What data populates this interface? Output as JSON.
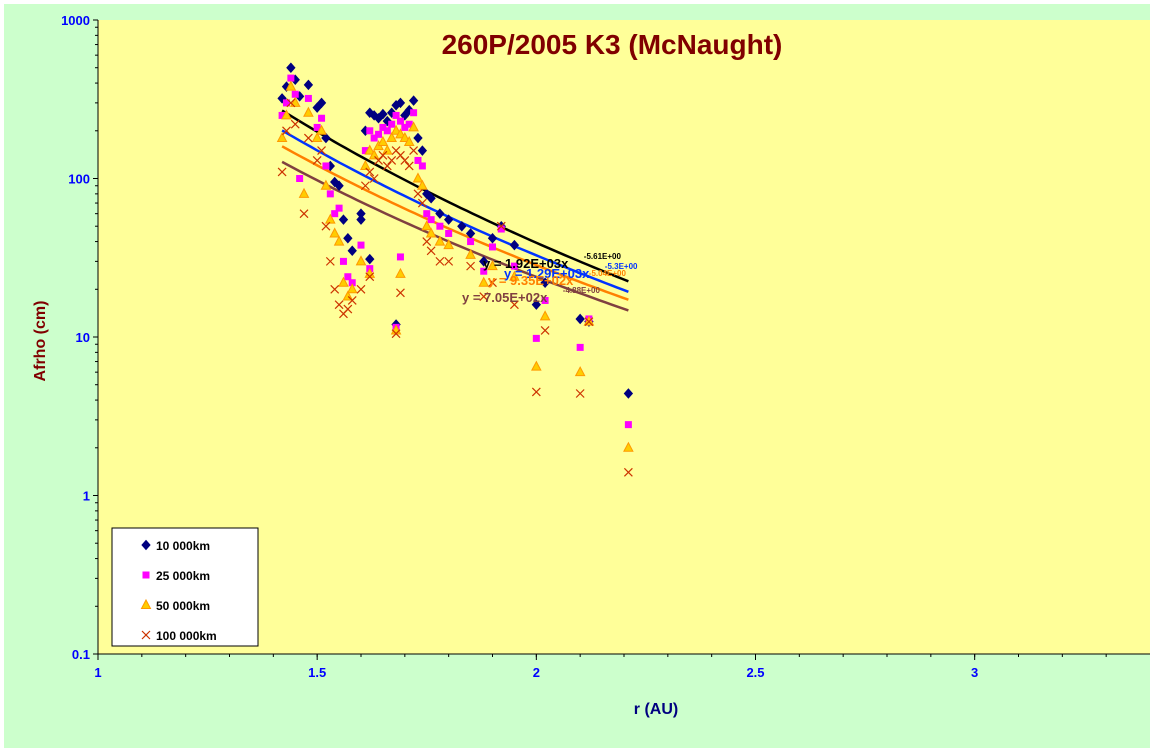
{
  "chart_data": {
    "type": "scatter",
    "title": "260P/2005 K3 (McNaught)",
    "xlabel": "r (AU)",
    "ylabel": "Afrho (cm)",
    "x_range": [
      1,
      3.4
    ],
    "y_range": [
      0.1,
      1000
    ],
    "y_scale": "log",
    "x_ticks": [
      "1",
      "1.5",
      "2",
      "2.5",
      "3"
    ],
    "y_ticks": [
      "0.1",
      "1",
      "10",
      "100",
      "1000"
    ],
    "legend_position": "bottom-left",
    "colors": {
      "background": "#ccffcc",
      "plot_area": "#ffff99",
      "s1": "#000080",
      "s2": "#ff00ff",
      "s3": "#ff9900",
      "s4": "#cc3300",
      "trend1": "#000000",
      "trend2": "#0033ff",
      "trend3": "#ff8000",
      "trend4": "#804040"
    },
    "series": [
      {
        "name": "10 000km",
        "marker": "diamond",
        "points": [
          [
            1.42,
            320
          ],
          [
            1.43,
            380
          ],
          [
            1.44,
            500
          ],
          [
            1.45,
            420
          ],
          [
            1.46,
            330
          ],
          [
            1.48,
            390
          ],
          [
            1.5,
            280
          ],
          [
            1.51,
            300
          ],
          [
            1.52,
            180
          ],
          [
            1.53,
            120
          ],
          [
            1.54,
            95
          ],
          [
            1.55,
            90
          ],
          [
            1.56,
            55
          ],
          [
            1.57,
            42
          ],
          [
            1.58,
            35
          ],
          [
            1.6,
            60
          ],
          [
            1.6,
            55
          ],
          [
            1.61,
            200
          ],
          [
            1.62,
            260
          ],
          [
            1.63,
            250
          ],
          [
            1.64,
            240
          ],
          [
            1.65,
            255
          ],
          [
            1.66,
            230
          ],
          [
            1.67,
            260
          ],
          [
            1.68,
            290
          ],
          [
            1.69,
            300
          ],
          [
            1.7,
            250
          ],
          [
            1.71,
            270
          ],
          [
            1.72,
            310
          ],
          [
            1.73,
            180
          ],
          [
            1.74,
            150
          ],
          [
            1.75,
            80
          ],
          [
            1.76,
            75
          ],
          [
            1.78,
            60
          ],
          [
            1.8,
            55
          ],
          [
            1.68,
            12
          ],
          [
            1.85,
            45
          ],
          [
            1.9,
            42
          ],
          [
            1.95,
            38
          ],
          [
            1.92,
            50
          ],
          [
            2,
            16
          ],
          [
            2.02,
            22
          ],
          [
            2.1,
            13
          ],
          [
            2.12,
            12.5
          ],
          [
            2.21,
            4.4
          ],
          [
            1.88,
            30
          ],
          [
            1.83,
            50
          ],
          [
            1.62,
            31
          ]
        ]
      },
      {
        "name": "25 000km",
        "marker": "square",
        "points": [
          [
            1.42,
            250
          ],
          [
            1.43,
            300
          ],
          [
            1.44,
            430
          ],
          [
            1.45,
            340
          ],
          [
            1.46,
            100
          ],
          [
            1.48,
            320
          ],
          [
            1.5,
            210
          ],
          [
            1.51,
            240
          ],
          [
            1.52,
            120
          ],
          [
            1.53,
            80
          ],
          [
            1.54,
            60
          ],
          [
            1.55,
            65
          ],
          [
            1.56,
            30
          ],
          [
            1.57,
            24
          ],
          [
            1.58,
            22
          ],
          [
            1.6,
            38
          ],
          [
            1.61,
            150
          ],
          [
            1.62,
            200
          ],
          [
            1.63,
            180
          ],
          [
            1.64,
            190
          ],
          [
            1.65,
            210
          ],
          [
            1.66,
            200
          ],
          [
            1.67,
            220
          ],
          [
            1.68,
            250
          ],
          [
            1.69,
            230
          ],
          [
            1.7,
            210
          ],
          [
            1.71,
            220
          ],
          [
            1.72,
            260
          ],
          [
            1.73,
            130
          ],
          [
            1.74,
            120
          ],
          [
            1.75,
            60
          ],
          [
            1.76,
            55
          ],
          [
            1.78,
            50
          ],
          [
            1.8,
            45
          ],
          [
            1.68,
            11.5
          ],
          [
            1.85,
            40
          ],
          [
            1.9,
            37
          ],
          [
            1.95,
            28
          ],
          [
            1.92,
            48
          ],
          [
            2,
            9.8
          ],
          [
            2.02,
            17
          ],
          [
            2.1,
            8.6
          ],
          [
            2.12,
            13
          ],
          [
            2.21,
            2.8
          ],
          [
            1.88,
            26
          ],
          [
            1.62,
            27
          ],
          [
            1.69,
            32
          ]
        ]
      },
      {
        "name": "50 000km",
        "marker": "triangle",
        "points": [
          [
            1.42,
            180
          ],
          [
            1.43,
            250
          ],
          [
            1.44,
            380
          ],
          [
            1.45,
            300
          ],
          [
            1.47,
            80
          ],
          [
            1.48,
            260
          ],
          [
            1.5,
            180
          ],
          [
            1.51,
            200
          ],
          [
            1.52,
            90
          ],
          [
            1.53,
            55
          ],
          [
            1.54,
            45
          ],
          [
            1.55,
            40
          ],
          [
            1.56,
            22
          ],
          [
            1.57,
            18
          ],
          [
            1.58,
            20
          ],
          [
            1.6,
            30
          ],
          [
            1.61,
            120
          ],
          [
            1.62,
            150
          ],
          [
            1.63,
            140
          ],
          [
            1.64,
            160
          ],
          [
            1.65,
            170
          ],
          [
            1.66,
            150
          ],
          [
            1.67,
            180
          ],
          [
            1.68,
            200
          ],
          [
            1.69,
            190
          ],
          [
            1.7,
            180
          ],
          [
            1.71,
            170
          ],
          [
            1.72,
            210
          ],
          [
            1.73,
            100
          ],
          [
            1.74,
            90
          ],
          [
            1.75,
            50
          ],
          [
            1.76,
            45
          ],
          [
            1.78,
            40
          ],
          [
            1.8,
            38
          ],
          [
            1.68,
            11
          ],
          [
            1.85,
            33
          ],
          [
            1.9,
            28
          ],
          [
            1.95,
            24
          ],
          [
            2,
            6.5
          ],
          [
            2.02,
            13.5
          ],
          [
            2.1,
            6
          ],
          [
            2.12,
            12.5
          ],
          [
            2.21,
            2
          ],
          [
            1.88,
            22
          ],
          [
            1.62,
            25
          ],
          [
            1.69,
            25
          ]
        ]
      },
      {
        "name": "100 000km",
        "marker": "x",
        "points": [
          [
            1.42,
            110
          ],
          [
            1.43,
            200
          ],
          [
            1.44,
            300
          ],
          [
            1.45,
            220
          ],
          [
            1.47,
            60
          ],
          [
            1.48,
            180
          ],
          [
            1.5,
            130
          ],
          [
            1.51,
            150
          ],
          [
            1.52,
            50
          ],
          [
            1.53,
            30
          ],
          [
            1.54,
            20
          ],
          [
            1.55,
            16
          ],
          [
            1.56,
            14
          ],
          [
            1.57,
            15
          ],
          [
            1.58,
            17
          ],
          [
            1.6,
            20
          ],
          [
            1.61,
            90
          ],
          [
            1.62,
            110
          ],
          [
            1.63,
            100
          ],
          [
            1.64,
            130
          ],
          [
            1.65,
            140
          ],
          [
            1.66,
            120
          ],
          [
            1.67,
            130
          ],
          [
            1.68,
            150
          ],
          [
            1.69,
            140
          ],
          [
            1.7,
            130
          ],
          [
            1.71,
            120
          ],
          [
            1.72,
            150
          ],
          [
            1.73,
            80
          ],
          [
            1.74,
            70
          ],
          [
            1.75,
            40
          ],
          [
            1.76,
            35
          ],
          [
            1.78,
            30
          ],
          [
            1.8,
            30
          ],
          [
            1.68,
            10.5
          ],
          [
            1.85,
            28
          ],
          [
            1.9,
            22
          ],
          [
            1.95,
            16
          ],
          [
            1.92,
            50
          ],
          [
            2,
            4.5
          ],
          [
            2.02,
            11
          ],
          [
            2.1,
            4.4
          ],
          [
            2.12,
            12.5
          ],
          [
            2.21,
            1.4
          ],
          [
            1.88,
            18
          ],
          [
            1.62,
            24
          ],
          [
            1.69,
            19
          ]
        ]
      }
    ],
    "trendlines": [
      {
        "coef": 1920,
        "exp": -5.61,
        "x_range": [
          1.42,
          2.21
        ],
        "label": "y = 1.92E+03x",
        "exp_label": "-5.61E+00"
      },
      {
        "coef": 1290,
        "exp": -5.3,
        "x_range": [
          1.42,
          2.21
        ],
        "label": "y = 1.29E+03x",
        "exp_label": "-5.3E+00"
      },
      {
        "coef": 935,
        "exp": -5.04,
        "x_range": [
          1.42,
          2.21
        ],
        "label": "y = 9.35E+02x",
        "exp_label": "-5.04E+00"
      },
      {
        "coef": 705,
        "exp": -4.88,
        "x_range": [
          1.42,
          2.21
        ],
        "label": "y = 7.05E+02x",
        "exp_label": "-4.88E+00"
      }
    ]
  }
}
